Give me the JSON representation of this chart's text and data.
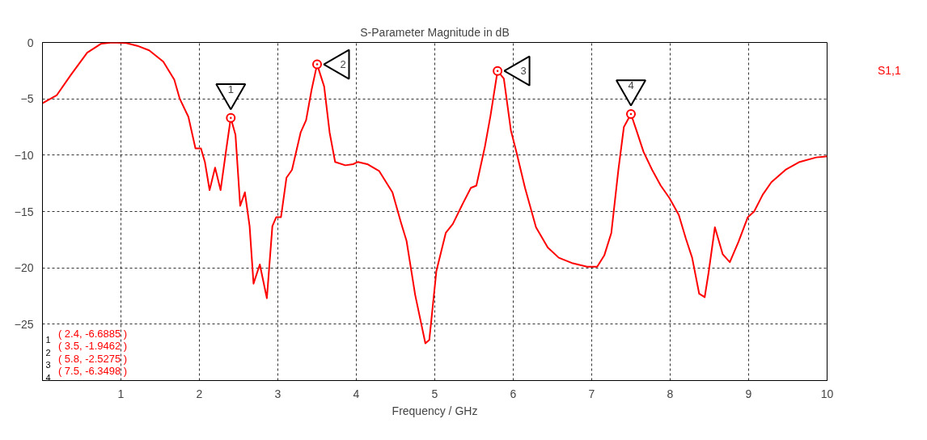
{
  "chart_data": {
    "type": "line",
    "title": "S-Parameter Magnitude in dB",
    "xlabel": "Frequency / GHz",
    "xlim": [
      0,
      10
    ],
    "xticks": [
      1,
      2,
      3,
      4,
      5,
      6,
      7,
      8,
      9,
      10
    ],
    "ylim": [
      -30,
      0
    ],
    "yticks": [
      0,
      -5,
      -10,
      -15,
      -20,
      -25
    ],
    "grid": true,
    "line_style": "solid",
    "series": [
      {
        "name": "S1,1",
        "color": "#ff0000",
        "x": [
          0,
          0.18,
          0.36,
          0.57,
          0.75,
          0.89,
          1.07,
          1.21,
          1.36,
          1.54,
          1.68,
          1.75,
          1.86,
          1.95,
          2.02,
          2.07,
          2.13,
          2.2,
          2.27,
          2.34,
          2.4,
          2.46,
          2.52,
          2.58,
          2.64,
          2.69,
          2.77,
          2.86,
          2.93,
          2.98,
          3.04,
          3.11,
          3.18,
          3.29,
          3.36,
          3.43,
          3.5,
          3.59,
          3.66,
          3.73,
          3.86,
          3.96,
          4.02,
          4.14,
          4.29,
          4.46,
          4.57,
          4.64,
          4.75,
          4.88,
          4.93,
          5.02,
          5.14,
          5.23,
          5.35,
          5.46,
          5.53,
          5.64,
          5.71,
          5.8,
          5.88,
          5.97,
          6.04,
          6.15,
          6.29,
          6.44,
          6.58,
          6.76,
          6.94,
          7.07,
          7.16,
          7.25,
          7.34,
          7.41,
          7.5,
          7.57,
          7.66,
          7.77,
          7.88,
          7.99,
          8.11,
          8.2,
          8.28,
          8.37,
          8.44,
          8.49,
          8.57,
          8.67,
          8.76,
          8.87,
          8.99,
          9.07,
          9.18,
          9.29,
          9.47,
          9.65,
          9.86,
          10
        ],
        "values": [
          -5.4,
          -4.7,
          -2.9,
          -0.9,
          -0.1,
          0,
          -0.05,
          -0.3,
          -0.7,
          -1.7,
          -3.3,
          -5.0,
          -6.6,
          -9.4,
          -9.4,
          -10.6,
          -13.1,
          -11.1,
          -13.1,
          -9.6,
          -6.6885,
          -8.2,
          -14.5,
          -13.3,
          -16.3,
          -21.4,
          -19.7,
          -22.7,
          -16.3,
          -15.5,
          -15.5,
          -12,
          -11.3,
          -8,
          -6.9,
          -4.2,
          -1.9462,
          -3.9,
          -8,
          -10.6,
          -10.9,
          -10.8,
          -10.6,
          -10.8,
          -11.4,
          -13.3,
          -16,
          -17.6,
          -22.4,
          -26.7,
          -26.4,
          -20.3,
          -16.9,
          -16.1,
          -14.4,
          -12.9,
          -12.7,
          -9.2,
          -6.5,
          -2.5275,
          -3.2,
          -7.8,
          -9.7,
          -12.9,
          -16.4,
          -18.2,
          -19.1,
          -19.6,
          -19.9,
          -19.9,
          -18.9,
          -16.9,
          -11.3,
          -7.5,
          -6.3498,
          -7.8,
          -9.7,
          -11.3,
          -12.7,
          -13.8,
          -15.3,
          -17.4,
          -19.1,
          -22.3,
          -22.6,
          -20.4,
          -16.4,
          -18.8,
          -19.5,
          -17.7,
          -15.5,
          -15,
          -13.5,
          -12.4,
          -11.3,
          -10.6,
          -10.2,
          -10.1
        ]
      }
    ],
    "annotations": [
      {
        "text": "1",
        "x": 2.4,
        "y": -6.6885
      },
      {
        "text": "2",
        "x": 3.5,
        "y": -1.9462
      },
      {
        "text": "3",
        "x": 5.8,
        "y": -2.5275
      },
      {
        "text": "4",
        "x": 7.5,
        "y": -6.3498
      },
      "( 2.4, -6.6885 )",
      "( 3.5, -1.9462 )",
      "( 5.8, -2.5275 )",
      "( 7.5, -6.3498 )"
    ]
  }
}
